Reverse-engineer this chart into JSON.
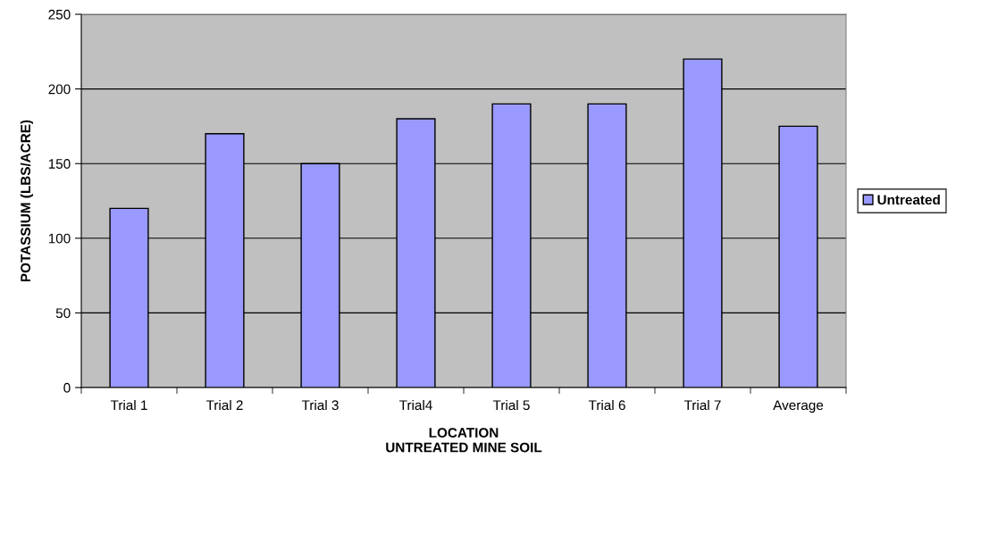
{
  "chart_data": {
    "type": "bar",
    "xlabel": "LOCATION\nUNTREATED MINE SOIL",
    "ylabel": "POTASSIUM (LBS/ACRE)",
    "categories": [
      "Trial 1",
      "Trial 2",
      "Trial 3",
      "Trial4",
      "Trial 5",
      "Trial 6",
      "Trial 7",
      "Average"
    ],
    "series": [
      {
        "name": "Untreated",
        "color": "#9999ff",
        "values": [
          120,
          170,
          150,
          180,
          190,
          190,
          220,
          175
        ]
      }
    ],
    "ylim": [
      0,
      250
    ],
    "yticks": [
      0,
      50,
      100,
      150,
      200,
      250
    ],
    "grid": "y",
    "legend": "right"
  }
}
